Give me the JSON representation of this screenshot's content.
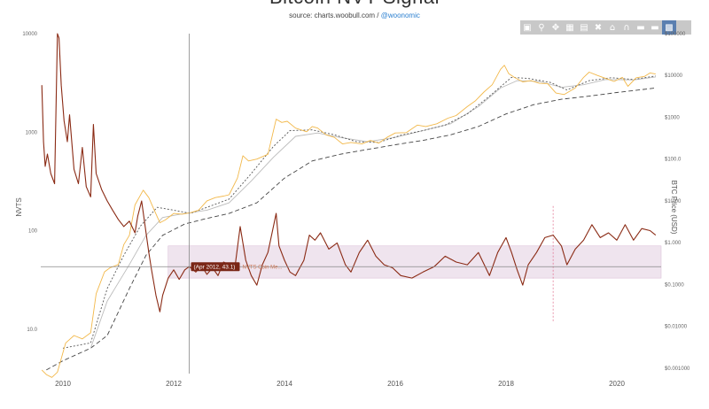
{
  "header": {
    "title": "Bitcoin NVT Signal",
    "subtitle_source": "source: charts.woobull.com / ",
    "subtitle_handle": "@woonomic"
  },
  "modebar": {
    "buttons": [
      "camera-icon",
      "zoom-icon",
      "pan-icon",
      "zoom-in-icon",
      "zoom-out-icon",
      "autoscale-icon",
      "reset-icon",
      "spike-icon",
      "hover-closest-icon",
      "hover-compare-icon",
      "logo-icon"
    ]
  },
  "chart_data": {
    "type": "line",
    "xlabel": "",
    "ylabel_left": "NVTS",
    "ylabel_right": "BTC Price (USD)",
    "x_ticks": [
      "2010",
      "2012",
      "2014",
      "2016",
      "2018",
      "2020"
    ],
    "y_left_ticks": [
      "10000",
      "1000",
      "100",
      "10.0"
    ],
    "y_right_ticks": [
      "$100000",
      "$10000",
      "$1000",
      "$100.0",
      "$10.00",
      "$1.000",
      "$0.1000",
      "$0.01000",
      "$0.001000"
    ],
    "y_left_scale": "log",
    "y_right_scale": "log",
    "y_left_range": [
      3,
      10000
    ],
    "y_right_range": [
      0.0005,
      100000
    ],
    "x_range": [
      2009.6,
      2020.8
    ],
    "hover_label": "(Apr 2012, 43.1)",
    "hover_series": "NVTS Coin Me...",
    "band": {
      "low": 33,
      "high": 70
    },
    "marker_line_x": 2018.85,
    "crosshair": {
      "x": 2012.28,
      "y": 43.1
    },
    "series": [
      {
        "color": "#8a2a14",
        "axis": "left",
        "points": [
          [
            2009.62,
            3000
          ],
          [
            2009.65,
            800
          ],
          [
            2009.68,
            450
          ],
          [
            2009.72,
            600
          ],
          [
            2009.78,
            380
          ],
          [
            2009.85,
            300
          ],
          [
            2009.9,
            10000
          ],
          [
            2009.93,
            9000
          ],
          [
            2009.97,
            3000
          ],
          [
            2010.02,
            1300
          ],
          [
            2010.08,
            800
          ],
          [
            2010.12,
            1500
          ],
          [
            2010.2,
            420
          ],
          [
            2010.28,
            300
          ],
          [
            2010.35,
            700
          ],
          [
            2010.42,
            280
          ],
          [
            2010.5,
            220
          ],
          [
            2010.55,
            1200
          ],
          [
            2010.6,
            380
          ],
          [
            2010.7,
            260
          ],
          [
            2010.8,
            200
          ],
          [
            2010.9,
            160
          ],
          [
            2011.0,
            130
          ],
          [
            2011.1,
            110
          ],
          [
            2011.2,
            125
          ],
          [
            2011.3,
            95
          ],
          [
            2011.35,
            140
          ],
          [
            2011.42,
            200
          ],
          [
            2011.5,
            95
          ],
          [
            2011.55,
            60
          ],
          [
            2011.6,
            40
          ],
          [
            2011.68,
            22
          ],
          [
            2011.75,
            15
          ],
          [
            2011.8,
            22
          ],
          [
            2011.9,
            33
          ],
          [
            2012.0,
            40
          ],
          [
            2012.1,
            32
          ],
          [
            2012.2,
            40
          ],
          [
            2012.28,
            43.1
          ],
          [
            2012.4,
            38
          ],
          [
            2012.5,
            44
          ],
          [
            2012.6,
            36
          ],
          [
            2012.7,
            42
          ],
          [
            2012.8,
            35
          ],
          [
            2012.9,
            48
          ],
          [
            2013.0,
            45
          ],
          [
            2013.1,
            40
          ],
          [
            2013.2,
            110
          ],
          [
            2013.3,
            50
          ],
          [
            2013.4,
            35
          ],
          [
            2013.5,
            28
          ],
          [
            2013.6,
            45
          ],
          [
            2013.7,
            60
          ],
          [
            2013.8,
            110
          ],
          [
            2013.85,
            150
          ],
          [
            2013.9,
            70
          ],
          [
            2014.0,
            50
          ],
          [
            2014.1,
            38
          ],
          [
            2014.2,
            35
          ],
          [
            2014.35,
            50
          ],
          [
            2014.45,
            90
          ],
          [
            2014.55,
            80
          ],
          [
            2014.65,
            95
          ],
          [
            2014.8,
            65
          ],
          [
            2014.95,
            75
          ],
          [
            2015.1,
            45
          ],
          [
            2015.2,
            38
          ],
          [
            2015.35,
            60
          ],
          [
            2015.5,
            80
          ],
          [
            2015.65,
            55
          ],
          [
            2015.8,
            45
          ],
          [
            2015.95,
            42
          ],
          [
            2016.1,
            35
          ],
          [
            2016.3,
            33
          ],
          [
            2016.5,
            38
          ],
          [
            2016.7,
            43
          ],
          [
            2016.9,
            55
          ],
          [
            2017.1,
            48
          ],
          [
            2017.3,
            45
          ],
          [
            2017.5,
            60
          ],
          [
            2017.7,
            35
          ],
          [
            2017.85,
            60
          ],
          [
            2018.0,
            85
          ],
          [
            2018.1,
            60
          ],
          [
            2018.2,
            40
          ],
          [
            2018.3,
            28
          ],
          [
            2018.4,
            45
          ],
          [
            2018.55,
            60
          ],
          [
            2018.7,
            85
          ],
          [
            2018.85,
            90
          ],
          [
            2019.0,
            70
          ],
          [
            2019.1,
            45
          ],
          [
            2019.25,
            65
          ],
          [
            2019.4,
            80
          ],
          [
            2019.55,
            115
          ],
          [
            2019.7,
            85
          ],
          [
            2019.85,
            95
          ],
          [
            2020.0,
            80
          ],
          [
            2020.15,
            115
          ],
          [
            2020.3,
            80
          ],
          [
            2020.45,
            105
          ],
          [
            2020.6,
            100
          ],
          [
            2020.7,
            90
          ]
        ]
      },
      {
        "color": "#f2b84a",
        "axis": "right",
        "points": [
          [
            2009.62,
            0.0009
          ],
          [
            2009.7,
            0.0007
          ],
          [
            2009.8,
            0.0006
          ],
          [
            2009.9,
            0.0008
          ],
          [
            2010.05,
            0.004
          ],
          [
            2010.2,
            0.006
          ],
          [
            2010.35,
            0.005
          ],
          [
            2010.5,
            0.007
          ],
          [
            2010.6,
            0.06
          ],
          [
            2010.75,
            0.2
          ],
          [
            2010.85,
            0.25
          ],
          [
            2011.0,
            0.3
          ],
          [
            2011.1,
            0.9
          ],
          [
            2011.2,
            1.5
          ],
          [
            2011.3,
            8
          ],
          [
            2011.45,
            18
          ],
          [
            2011.55,
            12
          ],
          [
            2011.65,
            6
          ],
          [
            2011.75,
            3
          ],
          [
            2011.85,
            3.5
          ],
          [
            2012.0,
            5
          ],
          [
            2012.15,
            4.8
          ],
          [
            2012.3,
            5.2
          ],
          [
            2012.45,
            6
          ],
          [
            2012.6,
            10
          ],
          [
            2012.75,
            12
          ],
          [
            2012.9,
            13
          ],
          [
            2013.0,
            14
          ],
          [
            2013.15,
            35
          ],
          [
            2013.25,
            120
          ],
          [
            2013.35,
            90
          ],
          [
            2013.5,
            100
          ],
          [
            2013.7,
            130
          ],
          [
            2013.85,
            900
          ],
          [
            2013.95,
            750
          ],
          [
            2014.05,
            800
          ],
          [
            2014.2,
            550
          ],
          [
            2014.4,
            450
          ],
          [
            2014.5,
            600
          ],
          [
            2014.6,
            550
          ],
          [
            2014.75,
            380
          ],
          [
            2014.9,
            330
          ],
          [
            2015.05,
            230
          ],
          [
            2015.2,
            250
          ],
          [
            2015.4,
            230
          ],
          [
            2015.55,
            280
          ],
          [
            2015.7,
            240
          ],
          [
            2015.85,
            330
          ],
          [
            2016.0,
            420
          ],
          [
            2016.2,
            430
          ],
          [
            2016.4,
            650
          ],
          [
            2016.55,
            600
          ],
          [
            2016.75,
            700
          ],
          [
            2016.95,
            950
          ],
          [
            2017.1,
            1100
          ],
          [
            2017.3,
            1800
          ],
          [
            2017.45,
            2500
          ],
          [
            2017.6,
            4000
          ],
          [
            2017.75,
            6000
          ],
          [
            2017.9,
            14000
          ],
          [
            2017.97,
            17500
          ],
          [
            2018.05,
            11000
          ],
          [
            2018.15,
            9000
          ],
          [
            2018.3,
            7000
          ],
          [
            2018.45,
            7500
          ],
          [
            2018.6,
            6500
          ],
          [
            2018.75,
            6400
          ],
          [
            2018.9,
            3800
          ],
          [
            2019.05,
            3500
          ],
          [
            2019.25,
            5000
          ],
          [
            2019.4,
            9000
          ],
          [
            2019.5,
            12000
          ],
          [
            2019.65,
            10000
          ],
          [
            2019.8,
            8500
          ],
          [
            2019.95,
            7200
          ],
          [
            2020.1,
            9000
          ],
          [
            2020.2,
            5500
          ],
          [
            2020.35,
            8800
          ],
          [
            2020.5,
            9500
          ],
          [
            2020.6,
            11500
          ],
          [
            2020.7,
            10800
          ]
        ]
      },
      {
        "color": "#555555",
        "axis": "right",
        "dash": "2,2",
        "points": [
          [
            2010.0,
            0.003
          ],
          [
            2010.5,
            0.004
          ],
          [
            2010.8,
            0.08
          ],
          [
            2011.1,
            0.5
          ],
          [
            2011.4,
            2.5
          ],
          [
            2011.7,
            7
          ],
          [
            2012.0,
            6
          ],
          [
            2012.3,
            5
          ],
          [
            2012.6,
            7
          ],
          [
            2013.0,
            11
          ],
          [
            2013.4,
            45
          ],
          [
            2013.8,
            200
          ],
          [
            2014.1,
            480
          ],
          [
            2014.5,
            500
          ],
          [
            2014.9,
            380
          ],
          [
            2015.3,
            260
          ],
          [
            2015.7,
            250
          ],
          [
            2016.1,
            370
          ],
          [
            2016.5,
            480
          ],
          [
            2016.9,
            650
          ],
          [
            2017.3,
            1200
          ],
          [
            2017.7,
            3200
          ],
          [
            2018.1,
            9000
          ],
          [
            2018.4,
            8500
          ],
          [
            2018.8,
            6800
          ],
          [
            2019.1,
            4500
          ],
          [
            2019.5,
            7500
          ],
          [
            2019.9,
            8800
          ],
          [
            2020.3,
            8000
          ],
          [
            2020.7,
            9700
          ]
        ]
      },
      {
        "color": "#bbbbbb",
        "axis": "right",
        "points": [
          [
            2010.5,
            0.003
          ],
          [
            2010.8,
            0.04
          ],
          [
            2011.2,
            0.3
          ],
          [
            2011.5,
            1.5
          ],
          [
            2011.8,
            4
          ],
          [
            2012.2,
            5
          ],
          [
            2012.6,
            6
          ],
          [
            2013.0,
            9
          ],
          [
            2013.4,
            30
          ],
          [
            2013.8,
            110
          ],
          [
            2014.2,
            350
          ],
          [
            2014.6,
            420
          ],
          [
            2015.0,
            330
          ],
          [
            2015.5,
            260
          ],
          [
            2016.0,
            330
          ],
          [
            2016.5,
            480
          ],
          [
            2017.0,
            700
          ],
          [
            2017.5,
            1800
          ],
          [
            2017.9,
            5000
          ],
          [
            2018.2,
            7500
          ],
          [
            2018.6,
            7200
          ],
          [
            2019.0,
            5200
          ],
          [
            2019.4,
            6000
          ],
          [
            2019.8,
            8000
          ],
          [
            2020.3,
            7800
          ],
          [
            2020.7,
            9200
          ]
        ]
      },
      {
        "color": "#444444",
        "axis": "right",
        "dash": "5,3",
        "points": [
          [
            2009.7,
            0.0009
          ],
          [
            2010.0,
            0.0015
          ],
          [
            2010.5,
            0.003
          ],
          [
            2010.8,
            0.006
          ],
          [
            2011.2,
            0.08
          ],
          [
            2011.5,
            0.5
          ],
          [
            2011.8,
            1.5
          ],
          [
            2012.2,
            2.8
          ],
          [
            2012.6,
            3.8
          ],
          [
            2013.0,
            5
          ],
          [
            2013.5,
            9
          ],
          [
            2014.0,
            35
          ],
          [
            2014.5,
            90
          ],
          [
            2015.0,
            130
          ],
          [
            2015.5,
            170
          ],
          [
            2016.0,
            220
          ],
          [
            2016.5,
            280
          ],
          [
            2017.0,
            380
          ],
          [
            2017.5,
            600
          ],
          [
            2018.0,
            1200
          ],
          [
            2018.5,
            2000
          ],
          [
            2019.0,
            2700
          ],
          [
            2019.5,
            3200
          ],
          [
            2020.0,
            3900
          ],
          [
            2020.7,
            5000
          ]
        ]
      }
    ]
  }
}
